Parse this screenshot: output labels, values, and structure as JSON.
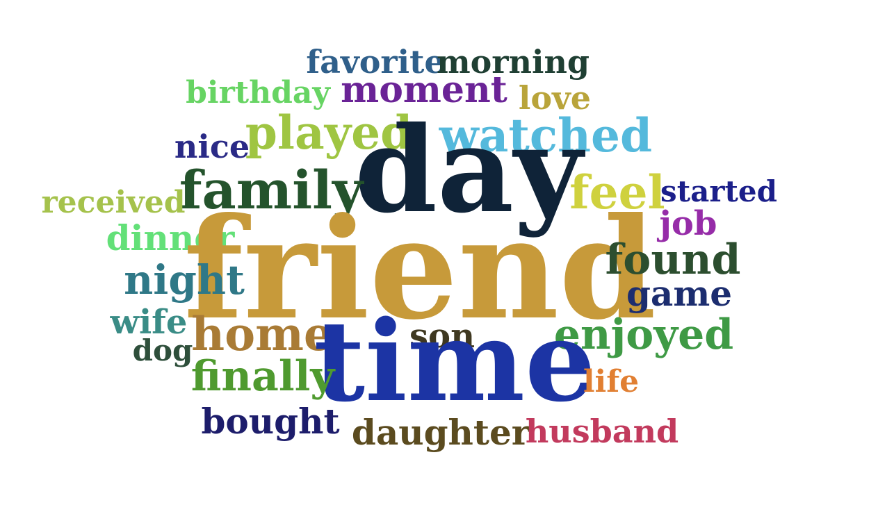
{
  "words": [
    {
      "text": "favorite",
      "color": "#2f5f8a"
    },
    {
      "text": "morning",
      "color": "#1f3f33"
    },
    {
      "text": "birthday",
      "color": "#67d463"
    },
    {
      "text": "moment",
      "color": "#6a2396"
    },
    {
      "text": "love",
      "color": "#b9a43a"
    },
    {
      "text": "nice",
      "color": "#2a2a86"
    },
    {
      "text": "played",
      "color": "#9fc542"
    },
    {
      "text": "watched",
      "color": "#54b9dc"
    },
    {
      "text": "day",
      "color": "#0f2338"
    },
    {
      "text": "family",
      "color": "#24532c"
    },
    {
      "text": "feel",
      "color": "#cfd13e"
    },
    {
      "text": "started",
      "color": "#1b1f8a"
    },
    {
      "text": "received",
      "color": "#a5c24c"
    },
    {
      "text": "job",
      "color": "#962ca8"
    },
    {
      "text": "dinner",
      "color": "#63e078"
    },
    {
      "text": "friend",
      "color": "#c79a3a"
    },
    {
      "text": "found",
      "color": "#2c4e2f"
    },
    {
      "text": "night",
      "color": "#2f7887"
    },
    {
      "text": "game",
      "color": "#1c2d6f"
    },
    {
      "text": "wife",
      "color": "#3a8c86"
    },
    {
      "text": "home",
      "color": "#a97b35"
    },
    {
      "text": "son",
      "color": "#3f3820"
    },
    {
      "text": "enjoyed",
      "color": "#3f9a45"
    },
    {
      "text": "dog",
      "color": "#2e4f3b"
    },
    {
      "text": "time",
      "color": "#1c34a4"
    },
    {
      "text": "finally",
      "color": "#4f9a2f"
    },
    {
      "text": "life",
      "color": "#e17f32"
    },
    {
      "text": "bought",
      "color": "#1d1d6b"
    },
    {
      "text": "daughter",
      "color": "#5b4b1f"
    },
    {
      "text": "husband",
      "color": "#c23a5d"
    }
  ]
}
